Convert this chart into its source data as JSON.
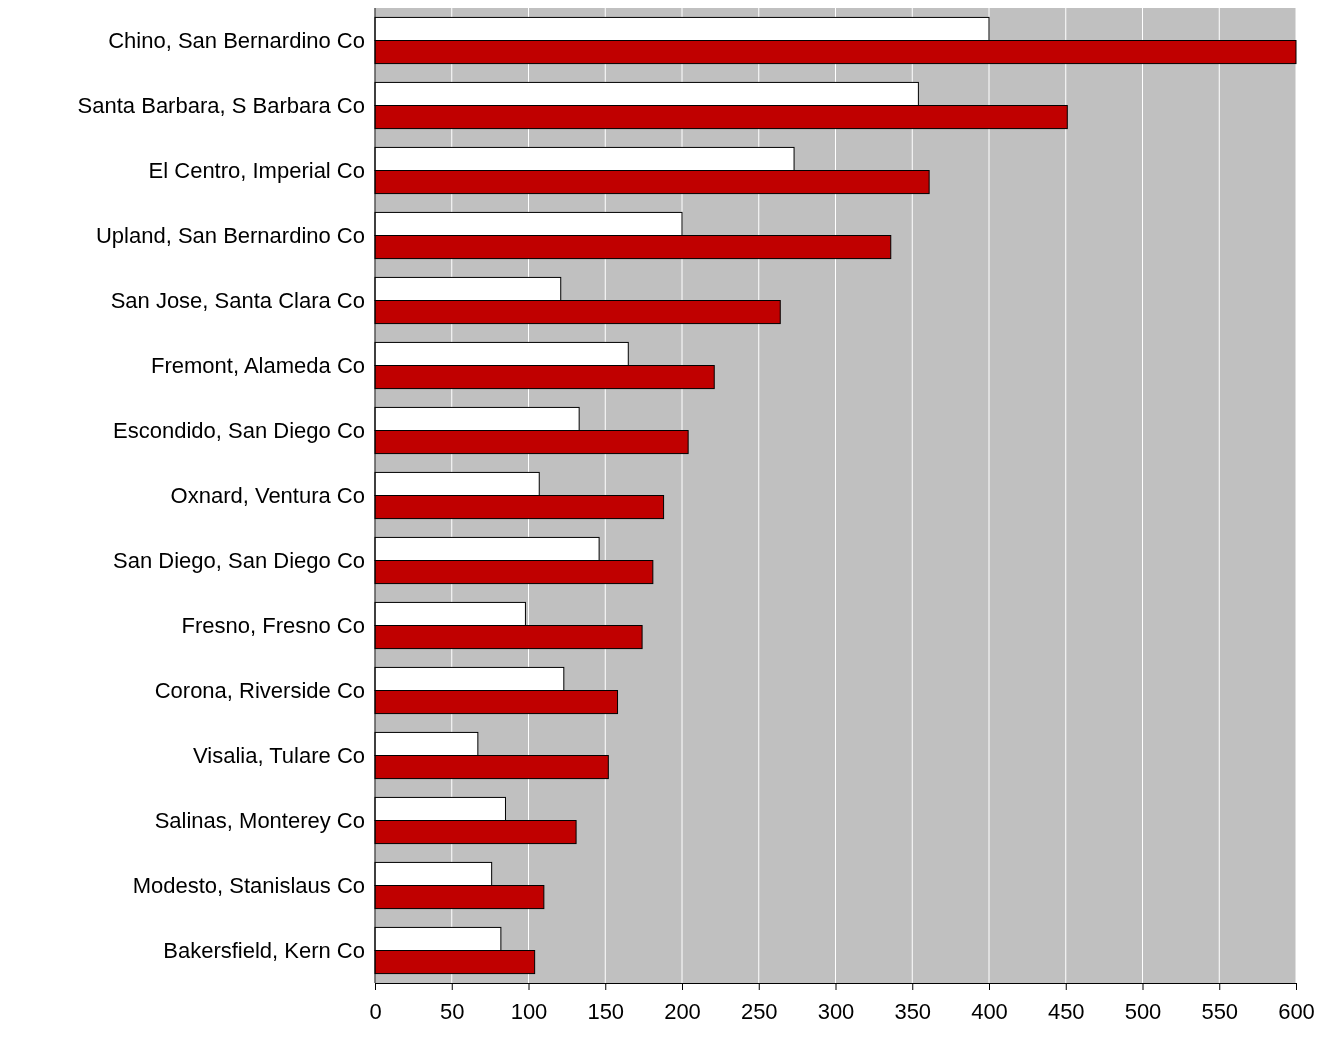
{
  "chart_data": {
    "type": "bar",
    "orientation": "horizontal",
    "categories": [
      "Chino, San Bernardino Co",
      "Santa Barbara, S Barbara Co",
      "El Centro, Imperial Co",
      "Upland, San Bernardino Co",
      "San Jose, Santa Clara Co",
      "Fremont, Alameda Co",
      "Escondido, San Diego Co",
      "Oxnard, Ventura Co",
      "San Diego, San Diego Co",
      "Fresno, Fresno Co",
      "Corona, Riverside Co",
      "Visalia, Tulare Co",
      "Salinas, Monterey Co",
      "Modesto, Stanislaus Co",
      "Bakersfield, Kern Co"
    ],
    "series": [
      {
        "color": "#ffffff",
        "values": [
          400,
          354,
          273,
          200,
          121,
          165,
          133,
          107,
          146,
          98,
          123,
          67,
          85,
          76,
          82
        ]
      },
      {
        "color": "#c00000",
        "values": [
          600,
          451,
          361,
          336,
          264,
          221,
          204,
          188,
          181,
          174,
          158,
          152,
          131,
          110,
          104
        ]
      }
    ],
    "xlim": [
      0,
      600
    ],
    "xticks": [
      0,
      50,
      100,
      150,
      200,
      250,
      300,
      350,
      400,
      450,
      500,
      550,
      600
    ],
    "grid": "x"
  }
}
